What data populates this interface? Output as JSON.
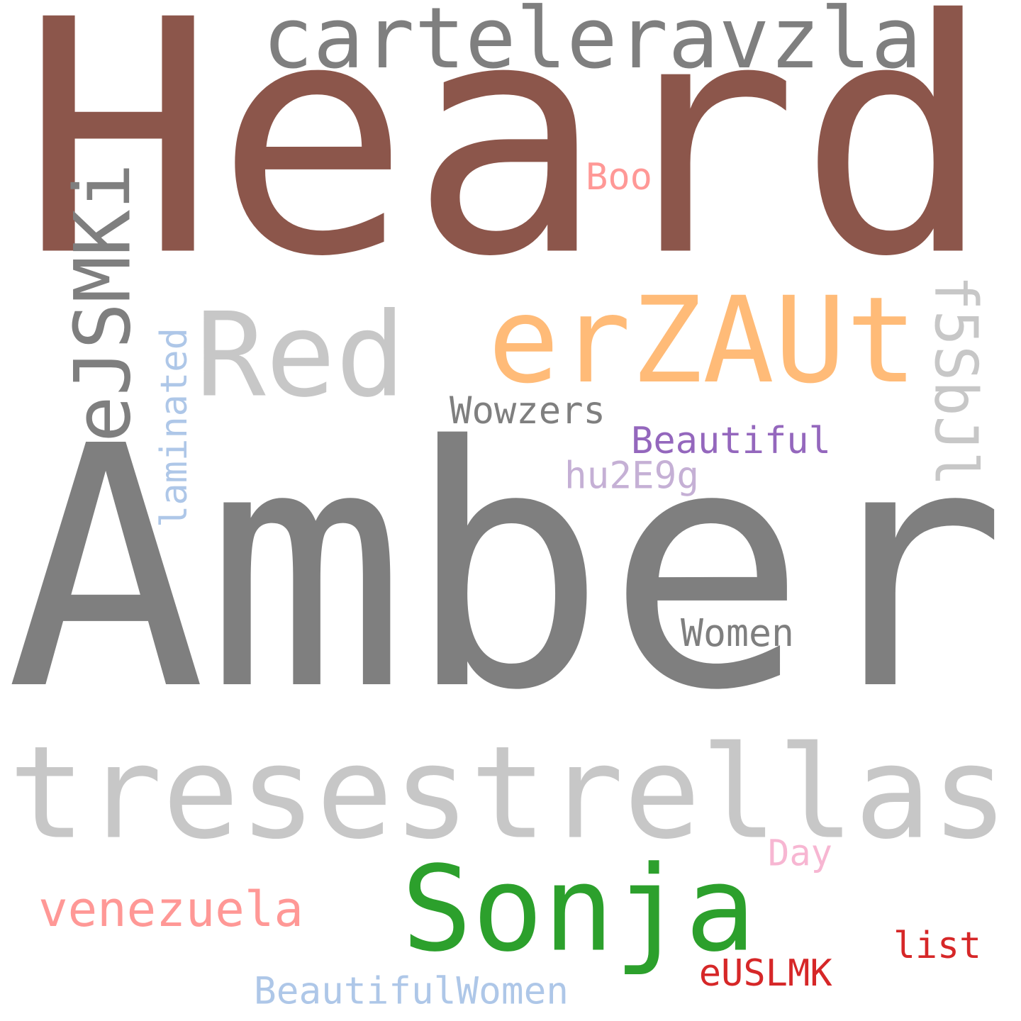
{
  "words": [
    {
      "id": "heard",
      "text": "Heard",
      "color": "#8c564b"
    },
    {
      "id": "carteleravzla",
      "text": "carteleravzla",
      "color": "#7f7f7f"
    },
    {
      "id": "ejsmki",
      "text": "eJSMKi",
      "color": "#7f7f7f"
    },
    {
      "id": "boo",
      "text": "Boo",
      "color": "#ff9896"
    },
    {
      "id": "red",
      "text": "Red",
      "color": "#c7c7c7"
    },
    {
      "id": "erzaut",
      "text": "erZAUt",
      "color": "#ffbb78"
    },
    {
      "id": "f5sbjl",
      "text": "f5SbJl",
      "color": "#c7c7c7"
    },
    {
      "id": "laminated",
      "text": "laminated",
      "color": "#aec7e8"
    },
    {
      "id": "wowzers",
      "text": "Wowzers",
      "color": "#7f7f7f"
    },
    {
      "id": "beautiful",
      "text": "Beautiful",
      "color": "#9467bd"
    },
    {
      "id": "hu2e9g",
      "text": "hu2E9g",
      "color": "#c5b0d5"
    },
    {
      "id": "amber",
      "text": "Amber",
      "color": "#7f7f7f"
    },
    {
      "id": "women",
      "text": "Women",
      "color": "#7f7f7f"
    },
    {
      "id": "tresestrellas",
      "text": "tresestrellas",
      "color": "#c7c7c7"
    },
    {
      "id": "day",
      "text": "Day",
      "color": "#f7b6d2"
    },
    {
      "id": "sonja",
      "text": "Sonja",
      "color": "#2ca02c"
    },
    {
      "id": "venezuela",
      "text": "venezuela",
      "color": "#ff9896"
    },
    {
      "id": "list",
      "text": "list",
      "color": "#d62728"
    },
    {
      "id": "euslmk",
      "text": "eUSLMK",
      "color": "#d62728"
    },
    {
      "id": "beautifulwomen",
      "text": "BeautifulWomen",
      "color": "#aec7e8"
    }
  ]
}
